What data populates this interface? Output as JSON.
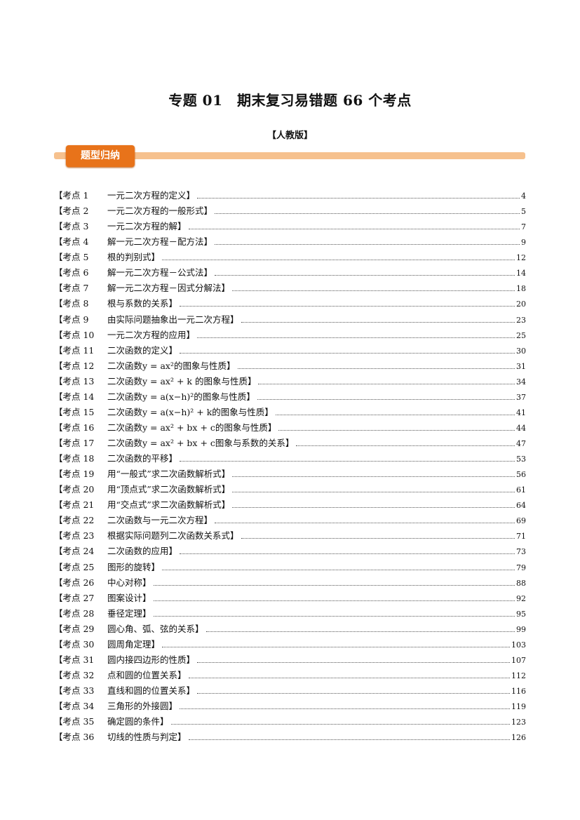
{
  "title": "专题 01　期末复习易错题 66 个考点",
  "edition": "【人教版】",
  "section_badge": "题型归纳",
  "toc": [
    {
      "n": "【考点 1",
      "t": "一元二次方程的定义】",
      "p": "4"
    },
    {
      "n": "【考点 2",
      "t": "一元二次方程的一般形式】",
      "p": "5"
    },
    {
      "n": "【考点 3",
      "t": "一元二次方程的解】",
      "p": "7"
    },
    {
      "n": "【考点 4",
      "t": "解一元二次方程－配方法】",
      "p": "9"
    },
    {
      "n": "【考点 5",
      "t": "根的判别式】",
      "p": "12"
    },
    {
      "n": "【考点 6",
      "t": "解一元二次方程－公式法】",
      "p": "14"
    },
    {
      "n": "【考点 7",
      "t": "解一元二次方程－因式分解法】",
      "p": "18"
    },
    {
      "n": "【考点 8",
      "t": "根与系数的关系】",
      "p": "20"
    },
    {
      "n": "【考点 9",
      "t": "由实际问题抽象出一元二次方程】",
      "p": "23"
    },
    {
      "n": "【考点 10",
      "t": "一元二次方程的应用】",
      "p": "25"
    },
    {
      "n": "【考点 11",
      "t": "二次函数的定义】",
      "p": "30"
    },
    {
      "n": "【考点 12",
      "t": " 二次函数y = ax²的图象与性质】",
      "p": "31"
    },
    {
      "n": "【考点 13",
      "t": "二次函数y = ax² + k 的图象与性质】",
      "p": "34"
    },
    {
      "n": "【考点 14",
      "t": "二次函数y = a(x−h)²的图象与性质】",
      "p": "37"
    },
    {
      "n": "【考点 15",
      "t": "二次函数y = a(x−h)² + k的图象与性质】",
      "p": "41"
    },
    {
      "n": "【考点 16",
      "t": "二次函数y = ax² + bx + c的图象与性质】",
      "p": "44"
    },
    {
      "n": "【考点 17",
      "t": "二次函数y = ax² + bx + c图象与系数的关系】",
      "p": "47"
    },
    {
      "n": "【考点 18",
      "t": "二次函数的平移】",
      "p": "53"
    },
    {
      "n": "【考点 19",
      "t": "用“一般式”求二次函数解析式】",
      "p": "56"
    },
    {
      "n": "【考点 20",
      "t": "用“顶点式”求二次函数解析式】",
      "p": "61"
    },
    {
      "n": "【考点 21",
      "t": "用“交点式”求二次函数解析式】",
      "p": "64"
    },
    {
      "n": "【考点 22",
      "t": "二次函数与一元二次方程】",
      "p": "69"
    },
    {
      "n": "【考点 23",
      "t": "根据实际问题列二次函数关系式】",
      "p": "71"
    },
    {
      "n": "【考点 24",
      "t": "二次函数的应用】",
      "p": "73"
    },
    {
      "n": "【考点 25",
      "t": "图形的旋转】",
      "p": "79"
    },
    {
      "n": "【考点 26",
      "t": "中心对称】",
      "p": "88"
    },
    {
      "n": "【考点 27",
      "t": "图案设计】",
      "p": "92"
    },
    {
      "n": "【考点 28",
      "t": "垂径定理】",
      "p": "95"
    },
    {
      "n": "【考点 29",
      "t": "圆心角、弧、弦的关系】",
      "p": "99"
    },
    {
      "n": "【考点 30",
      "t": "圆周角定理】",
      "p": "103"
    },
    {
      "n": "【考点 31",
      "t": "圆内接四边形的性质】",
      "p": "107"
    },
    {
      "n": "【考点 32",
      "t": "点和圆的位置关系】",
      "p": "112"
    },
    {
      "n": "【考点 33",
      "t": "直线和圆的位置关系】",
      "p": "116"
    },
    {
      "n": "【考点 34",
      "t": "三角形的外接圆】",
      "p": "119"
    },
    {
      "n": "【考点 35",
      "t": "确定圆的条件】",
      "p": "123"
    },
    {
      "n": "【考点 36",
      "t": "切线的性质与判定】",
      "p": "126"
    }
  ]
}
